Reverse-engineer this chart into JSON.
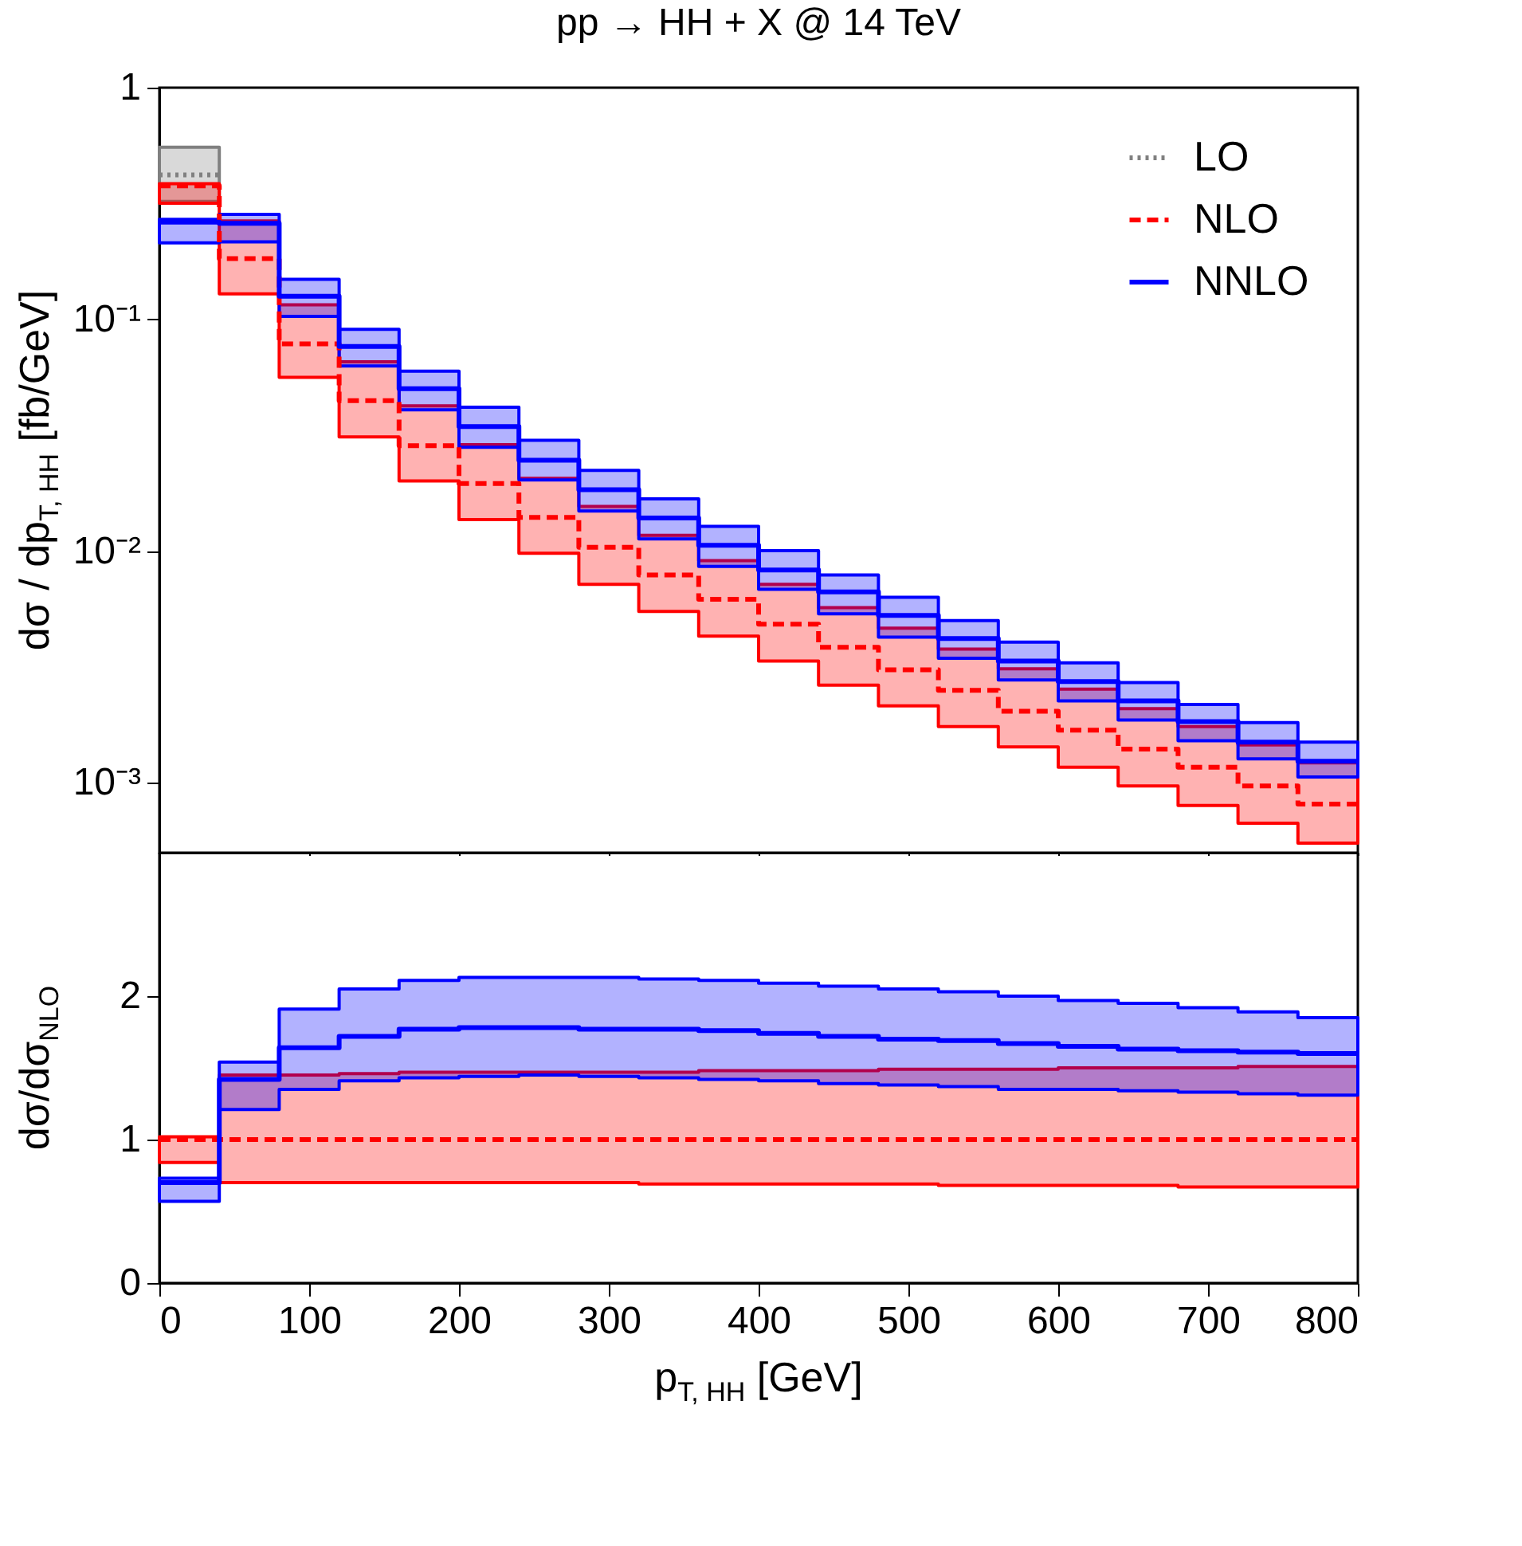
{
  "chart_data": [
    {
      "type": "step",
      "title": "pp → HH + X @ 14 TeV",
      "ylabel": "dσ / dp$_{T, HH}$ [fb/GeV]",
      "log": "y",
      "legend": "top right",
      "tick_labels": "y",
      "x": [
        0,
        40,
        80,
        120,
        160,
        200,
        240,
        280,
        320,
        360,
        400,
        440,
        480,
        520,
        560,
        600,
        640,
        680,
        720,
        760,
        800
      ],
      "xlim": [
        0,
        800
      ],
      "xticks": [
        0,
        100,
        200,
        300,
        400,
        500,
        600,
        700,
        800
      ],
      "ylim": [
        0.0005,
        1
      ],
      "yticks": [
        1,
        {
          "value": 0.1,
          "label": "10⁻¹"
        },
        {
          "value": 0.01,
          "label": "10⁻²"
        },
        {
          "value": 0.001,
          "label": "10⁻³"
        }
      ],
      "series": [
        {
          "name": "LO",
          "color": "#808080",
          "line_style": "dotted",
          "x": [
            0,
            40
          ],
          "values": [
            0.42,
            0.42
          ],
          "lower": [
            0.323,
            0.323
          ],
          "upper": [
            0.553,
            0.553
          ]
        },
        {
          "name": "NLO",
          "color": "#ff0000",
          "line_style": "dashed",
          "values": [
            0.377,
            0.183,
            0.0785,
            0.0446,
            0.0285,
            0.0196,
            0.014,
            0.0104,
            0.0079,
            0.0062,
            0.00484,
            0.00385,
            0.00308,
            0.00251,
            0.00204,
            0.00169,
            0.0014,
            0.00117,
            0.00097,
            0.00081,
            0.00081
          ],
          "lower": [
            0.317,
            0.129,
            0.0562,
            0.0311,
            0.0201,
            0.0137,
            0.0098,
            0.0072,
            0.0055,
            0.0043,
            0.00336,
            0.00264,
            0.00215,
            0.00175,
            0.00143,
            0.00117,
            0.00097,
            0.0008,
            0.00067,
            0.00055,
            0.00055
          ],
          "upper": [
            0.385,
            0.266,
            0.1155,
            0.0656,
            0.0424,
            0.0288,
            0.0206,
            0.0156,
            0.0117,
            0.0091,
            0.0072,
            0.00571,
            0.00465,
            0.00378,
            0.00311,
            0.00254,
            0.00209,
            0.00175,
            0.00146,
            0.00122,
            0.00122
          ]
        },
        {
          "name": "NNLO",
          "color": "#0000ff",
          "line_style": "solid",
          "values": [
            0.263,
            0.26,
            0.126,
            0.0765,
            0.0502,
            0.0345,
            0.0247,
            0.0184,
            0.0139,
            0.0106,
            0.0083,
            0.00667,
            0.00528,
            0.0042,
            0.00336,
            0.00274,
            0.00226,
            0.00184,
            0.0015,
            0.00124,
            0.00124
          ],
          "lower": [
            0.214,
            0.216,
            0.103,
            0.063,
            0.0407,
            0.0281,
            0.0203,
            0.0149,
            0.0113,
            0.0086,
            0.00684,
            0.00537,
            0.00426,
            0.00345,
            0.00278,
            0.00226,
            0.00187,
            0.00152,
            0.00127,
            0.00106,
            0.00106
          ],
          "upper": [
            0.27,
            0.284,
            0.149,
            0.0907,
            0.0598,
            0.0418,
            0.0301,
            0.0223,
            0.0168,
            0.0128,
            0.01005,
            0.0079,
            0.00633,
            0.00502,
            0.00405,
            0.0033,
            0.00271,
            0.00218,
            0.00182,
            0.0015,
            0.0015
          ]
        }
      ]
    },
    {
      "type": "step",
      "xlabel": "p$_{T, HH}$ [GeV]",
      "ylabel": "dσ/dσ$_{NLO}$",
      "x": [
        0,
        40,
        80,
        120,
        160,
        200,
        240,
        280,
        320,
        360,
        400,
        440,
        480,
        520,
        560,
        600,
        640,
        680,
        720,
        760,
        800
      ],
      "xlim": [
        0,
        800
      ],
      "xticks": [
        0,
        100,
        200,
        300,
        400,
        500,
        600,
        700,
        800
      ],
      "ylim": [
        0,
        3
      ],
      "yticks": [
        0,
        1,
        2
      ],
      "series": [
        {
          "color": "#ff0000",
          "line_style": "dashed",
          "values": [
            1,
            1,
            1,
            1,
            1,
            1,
            1,
            1,
            1,
            1,
            1,
            1,
            1,
            1,
            1,
            1,
            1,
            1,
            1,
            1,
            1
          ],
          "lower": [
            0.84,
            0.7,
            0.7,
            0.7,
            0.7,
            0.7,
            0.7,
            0.7,
            0.69,
            0.69,
            0.69,
            0.69,
            0.69,
            0.68,
            0.68,
            0.68,
            0.68,
            0.67,
            0.67,
            0.67,
            0.67
          ],
          "upper": [
            1.02,
            1.45,
            1.45,
            1.46,
            1.47,
            1.47,
            1.47,
            1.47,
            1.47,
            1.48,
            1.48,
            1.48,
            1.49,
            1.49,
            1.49,
            1.5,
            1.5,
            1.5,
            1.51,
            1.51,
            1.51
          ]
        },
        {
          "color": "#0000ff",
          "line_style": "solid",
          "values": [
            0.7,
            1.42,
            1.64,
            1.72,
            1.77,
            1.78,
            1.78,
            1.77,
            1.77,
            1.76,
            1.74,
            1.72,
            1.7,
            1.69,
            1.67,
            1.65,
            1.63,
            1.62,
            1.61,
            1.6,
            1.6
          ],
          "lower": [
            0.57,
            1.21,
            1.35,
            1.41,
            1.43,
            1.44,
            1.45,
            1.44,
            1.43,
            1.42,
            1.41,
            1.39,
            1.38,
            1.37,
            1.35,
            1.35,
            1.34,
            1.33,
            1.32,
            1.31,
            1.31
          ],
          "upper": [
            0.73,
            1.54,
            1.91,
            2.05,
            2.11,
            2.13,
            2.13,
            2.13,
            2.12,
            2.11,
            2.09,
            2.07,
            2.05,
            2.03,
            2.0,
            1.97,
            1.95,
            1.92,
            1.89,
            1.85,
            1.85
          ]
        }
      ]
    }
  ]
}
